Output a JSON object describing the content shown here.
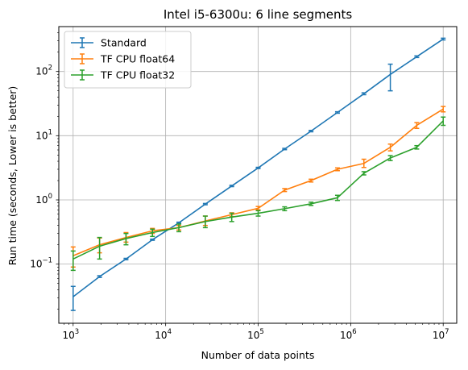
{
  "chart_data": {
    "type": "line",
    "title": "Intel i5-6300u: 6 line segments",
    "xlabel": "Number of data points",
    "ylabel": "Run time (seconds, Lower is better)",
    "xscale": "log",
    "yscale": "log",
    "xlim": [
      700,
      14000000
    ],
    "ylim": [
      0.012,
      500
    ],
    "grid": true,
    "legend_position": "top-left",
    "x_ticks": [
      {
        "value": 1000,
        "base": "10",
        "exp": "3"
      },
      {
        "value": 10000,
        "base": "10",
        "exp": "4"
      },
      {
        "value": 100000,
        "base": "10",
        "exp": "5"
      },
      {
        "value": 1000000,
        "base": "10",
        "exp": "6"
      },
      {
        "value": 10000000,
        "base": "10",
        "exp": "7"
      }
    ],
    "y_ticks": [
      {
        "value": 0.1,
        "base": "10",
        "exp": "−1"
      },
      {
        "value": 1,
        "base": "10",
        "exp": "0"
      },
      {
        "value": 10,
        "base": "10",
        "exp": "1"
      },
      {
        "value": 100,
        "base": "10",
        "exp": "2"
      }
    ],
    "x": [
      1000,
      1931,
      3728,
      7197,
      13895,
      26827,
      51795,
      100000,
      193069,
      372759,
      719686,
      1389495,
      2682696,
      5179474,
      10000000
    ],
    "series": [
      {
        "name": "Standard",
        "color": "#1f77b4",
        "values": [
          0.031,
          0.064,
          0.12,
          0.24,
          0.44,
          0.86,
          1.65,
          3.15,
          6.2,
          11.8,
          23,
          45,
          90,
          170,
          320
        ],
        "err_low": [
          0.019,
          0.062,
          0.117,
          0.235,
          0.43,
          0.84,
          1.61,
          3.08,
          6.05,
          11.5,
          22.4,
          43.5,
          50,
          165,
          310
        ],
        "err_high": [
          0.045,
          0.066,
          0.123,
          0.245,
          0.45,
          0.88,
          1.69,
          3.22,
          6.35,
          12.1,
          23.6,
          46.5,
          130,
          175,
          330
        ]
      },
      {
        "name": "TF CPU float64",
        "color": "#ff7f0e",
        "values": [
          0.135,
          0.2,
          0.26,
          0.33,
          0.37,
          0.47,
          0.59,
          0.74,
          1.42,
          2.0,
          3.0,
          3.7,
          6.6,
          14.5,
          26
        ],
        "err_low": [
          0.09,
          0.15,
          0.22,
          0.3,
          0.34,
          0.4,
          0.55,
          0.7,
          1.35,
          1.9,
          2.85,
          3.2,
          5.8,
          13,
          23.5
        ],
        "err_high": [
          0.185,
          0.255,
          0.31,
          0.36,
          0.4,
          0.56,
          0.63,
          0.79,
          1.5,
          2.1,
          3.15,
          4.3,
          7.4,
          16,
          28.5
        ]
      },
      {
        "name": "TF CPU float32",
        "color": "#2ca02c",
        "values": [
          0.12,
          0.19,
          0.25,
          0.31,
          0.37,
          0.46,
          0.54,
          0.62,
          0.73,
          0.87,
          1.08,
          2.6,
          4.5,
          6.6,
          17
        ],
        "err_low": [
          0.08,
          0.12,
          0.2,
          0.27,
          0.32,
          0.37,
          0.46,
          0.56,
          0.68,
          0.82,
          0.98,
          2.45,
          4.1,
          6.2,
          14.5
        ],
        "err_high": [
          0.16,
          0.26,
          0.3,
          0.35,
          0.42,
          0.56,
          0.62,
          0.68,
          0.78,
          0.92,
          1.18,
          2.75,
          4.9,
          7.0,
          19.5
        ]
      }
    ]
  }
}
